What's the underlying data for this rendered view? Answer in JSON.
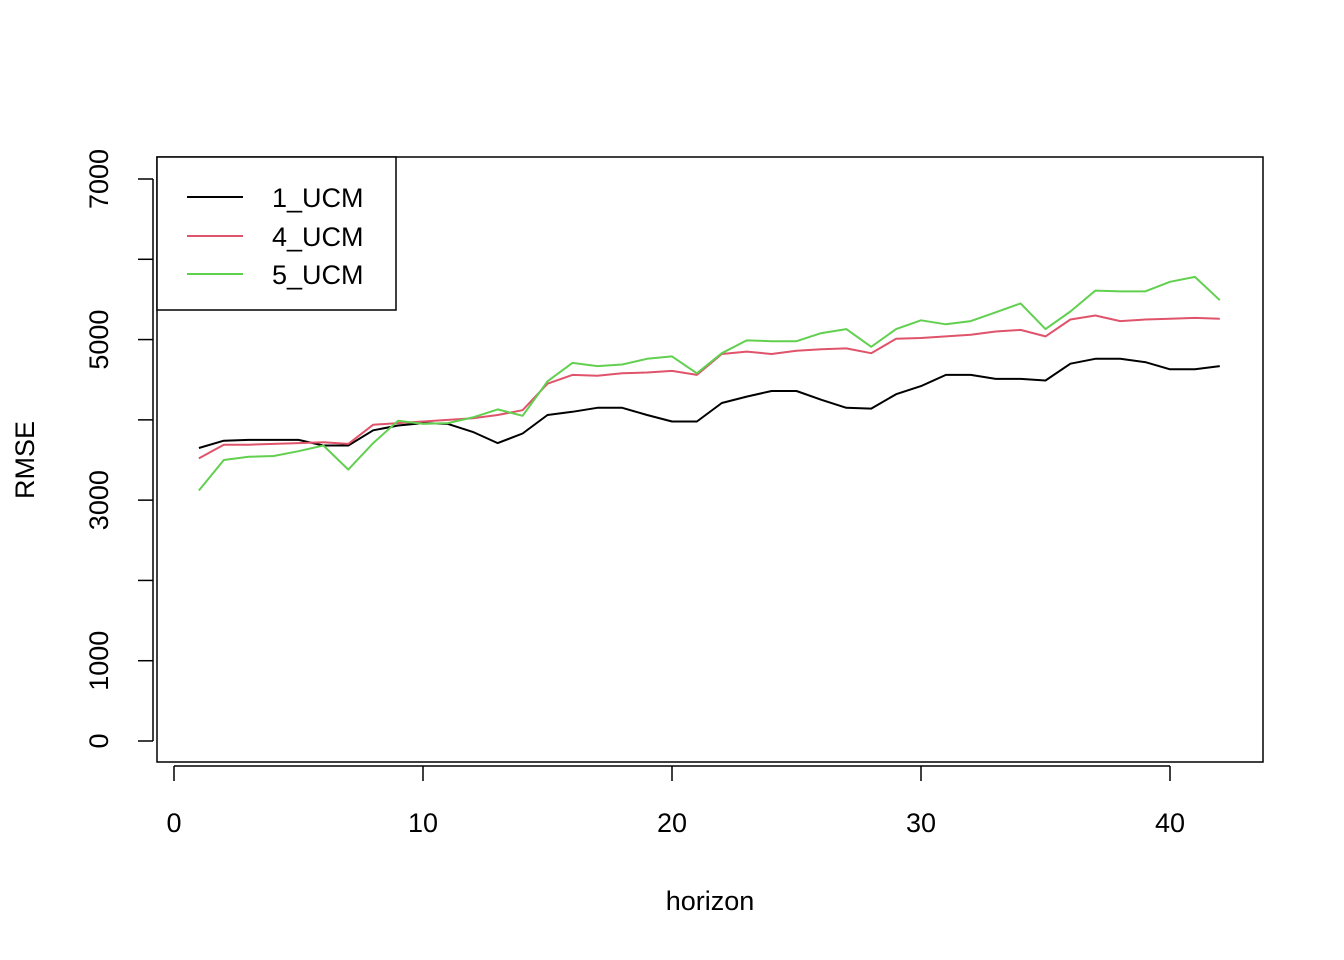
{
  "chart_data": {
    "type": "line",
    "title": "",
    "xlabel": "horizon",
    "ylabel": "RMSE",
    "xlim": [
      0,
      43
    ],
    "ylim": [
      0,
      7000
    ],
    "x_ticks": [
      "0",
      "10",
      "20",
      "30",
      "40"
    ],
    "x_tick_values": [
      0,
      10,
      20,
      30,
      40
    ],
    "y_ticks": [
      "0",
      "1000",
      "3000",
      "5000",
      "7000"
    ],
    "y_tick_values": [
      0,
      1000,
      2000,
      3000,
      4000,
      5000,
      6000,
      7000
    ],
    "grid": false,
    "legend_position": "top-left",
    "x": [
      1,
      2,
      3,
      4,
      5,
      6,
      7,
      8,
      9,
      10,
      11,
      12,
      13,
      14,
      15,
      16,
      17,
      18,
      19,
      20,
      21,
      22,
      23,
      24,
      25,
      26,
      27,
      28,
      29,
      30,
      31,
      32,
      33,
      34,
      35,
      36,
      37,
      38,
      39,
      40,
      41,
      42
    ],
    "series": [
      {
        "name": "1_UCM",
        "color": "#000000",
        "values": [
          3650,
          3740,
          3750,
          3750,
          3750,
          3680,
          3680,
          3870,
          3930,
          3960,
          3950,
          3850,
          3710,
          3830,
          4060,
          4100,
          4150,
          4150,
          4060,
          3980,
          3980,
          4210,
          4290,
          4360,
          4360,
          4250,
          4150,
          4140,
          4320,
          4420,
          4560,
          4560,
          4510,
          4510,
          4490,
          4700,
          4760,
          4760,
          4720,
          4630,
          4630,
          4670
        ]
      },
      {
        "name": "4_UCM",
        "color": "#DF536B",
        "values": [
          3520,
          3690,
          3690,
          3700,
          3710,
          3720,
          3700,
          3940,
          3960,
          3980,
          4000,
          4020,
          4060,
          4120,
          4450,
          4560,
          4550,
          4580,
          4590,
          4610,
          4560,
          4820,
          4850,
          4820,
          4860,
          4880,
          4890,
          4830,
          5010,
          5020,
          5040,
          5060,
          5100,
          5120,
          5040,
          5250,
          5300,
          5230,
          5250,
          5260,
          5270,
          5260
        ]
      },
      {
        "name": "5_UCM",
        "color": "#61D04F",
        "values": [
          3120,
          3500,
          3540,
          3550,
          3610,
          3680,
          3380,
          3710,
          3990,
          3950,
          3960,
          4030,
          4130,
          4050,
          4480,
          4710,
          4670,
          4690,
          4760,
          4790,
          4580,
          4830,
          4990,
          4980,
          4980,
          5080,
          5130,
          4910,
          5130,
          5240,
          5190,
          5230,
          5340,
          5450,
          5130,
          5350,
          5610,
          5600,
          5600,
          5720,
          5780,
          5490
        ]
      }
    ]
  }
}
